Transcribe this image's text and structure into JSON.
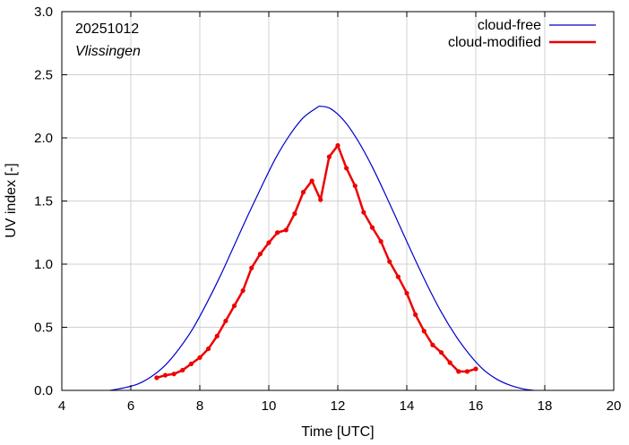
{
  "chart_data": {
    "type": "line",
    "date_label": "20251012",
    "location_label": "Vlissingen",
    "xlabel": "Time  [UTC]",
    "ylabel": "UV index  [-]",
    "xlim": [
      4,
      20
    ],
    "ylim": [
      0,
      3
    ],
    "xticks": [
      4,
      6,
      8,
      10,
      12,
      14,
      16,
      18,
      20
    ],
    "xtick_labels": [
      "4",
      "6",
      "8",
      "10",
      "12",
      "14",
      "16",
      "18",
      "20"
    ],
    "yticks": [
      0,
      0.5,
      1,
      1.5,
      2,
      2.5,
      3
    ],
    "ytick_labels": [
      "0.0",
      "0.5",
      "1.0",
      "1.5",
      "2.0",
      "2.5",
      "3.0"
    ],
    "grid": true,
    "legend_position": "top-right",
    "series": [
      {
        "name": "cloud-free",
        "color": "#0000cc",
        "markers": false,
        "x": [
          5.4,
          5.8,
          6.2,
          6.6,
          7.0,
          7.4,
          7.8,
          8.2,
          8.6,
          9.0,
          9.4,
          9.8,
          10.2,
          10.6,
          11.0,
          11.4,
          11.5,
          11.8,
          12.2,
          12.6,
          13.0,
          13.4,
          13.8,
          14.2,
          14.6,
          15.0,
          15.4,
          15.8,
          16.2,
          16.6,
          17.0,
          17.4,
          17.7
        ],
        "y": [
          0.0,
          0.02,
          0.05,
          0.11,
          0.2,
          0.33,
          0.49,
          0.69,
          0.91,
          1.15,
          1.39,
          1.62,
          1.84,
          2.02,
          2.16,
          2.24,
          2.25,
          2.23,
          2.13,
          1.97,
          1.77,
          1.54,
          1.3,
          1.06,
          0.83,
          0.62,
          0.44,
          0.29,
          0.17,
          0.09,
          0.04,
          0.01,
          0.0
        ]
      },
      {
        "name": "cloud-modified",
        "color": "#ee0000",
        "markers": true,
        "x": [
          6.75,
          7.0,
          7.25,
          7.5,
          7.75,
          8.0,
          8.25,
          8.5,
          8.75,
          9.0,
          9.25,
          9.5,
          9.75,
          10.0,
          10.25,
          10.5,
          10.75,
          11.0,
          11.25,
          11.5,
          11.75,
          12.0,
          12.25,
          12.5,
          12.75,
          13.0,
          13.25,
          13.5,
          13.75,
          14.0,
          14.25,
          14.5,
          14.75,
          15.0,
          15.25,
          15.5,
          15.75,
          16.0
        ],
        "y": [
          0.1,
          0.12,
          0.13,
          0.16,
          0.21,
          0.26,
          0.33,
          0.43,
          0.55,
          0.67,
          0.79,
          0.97,
          1.08,
          1.17,
          1.25,
          1.27,
          1.4,
          1.57,
          1.66,
          1.51,
          1.85,
          1.94,
          1.76,
          1.62,
          1.41,
          1.29,
          1.18,
          1.02,
          0.9,
          0.77,
          0.6,
          0.47,
          0.36,
          0.3,
          0.22,
          0.15,
          0.15,
          0.17
        ]
      }
    ]
  }
}
